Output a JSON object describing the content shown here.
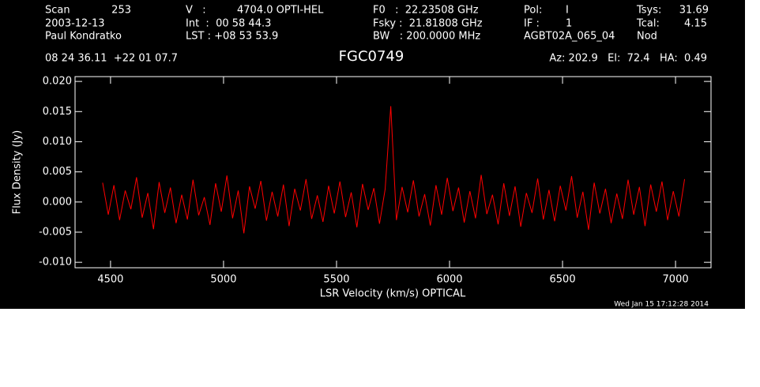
{
  "header": {
    "scan_label": "Scan",
    "scan": "253",
    "date": "2003-12-13",
    "observer": "Paul Kondratko",
    "v_label": "V   :",
    "v": "4704.0 OPTI-HEL",
    "int": "Int  :  00 58 44.3",
    "lst": "LST : +08 53 53.9",
    "f0": "F0   :  22.23508 GHz",
    "fsky": "Fsky :  21.81808 GHz",
    "bw": "BW   : 200.0000 MHz",
    "pol_label": "Pol:",
    "pol": "I",
    "if_label": "IF :",
    "if": "1",
    "project": "AGBT02A_065_04",
    "tsys_label": "Tsys:",
    "tsys": "31.69",
    "tcal_label": "Tcal:",
    "tcal": "4.15",
    "mode": "Nod",
    "coords": "08 24 36.11  +22 01 07.7",
    "azel": "Az: 202.9   El:  72.4   HA:  0.49"
  },
  "chart_data": {
    "type": "line",
    "title": "FGC0749",
    "x_label": "LSR Velocity (km/s) OPTICAL",
    "y_label": "Flux Density (Jy)",
    "x": [
      4465,
      4490,
      4515,
      4540,
      4565,
      4590,
      4615,
      4640,
      4665,
      4690,
      4715,
      4740,
      4765,
      4790,
      4815,
      4840,
      4865,
      4890,
      4915,
      4940,
      4965,
      4990,
      5015,
      5040,
      5065,
      5090,
      5115,
      5140,
      5165,
      5190,
      5215,
      5240,
      5265,
      5290,
      5315,
      5340,
      5365,
      5390,
      5415,
      5440,
      5465,
      5490,
      5515,
      5540,
      5565,
      5590,
      5615,
      5640,
      5665,
      5690,
      5715,
      5740,
      5765,
      5790,
      5815,
      5840,
      5865,
      5890,
      5915,
      5940,
      5965,
      5990,
      6015,
      6040,
      6065,
      6090,
      6115,
      6140,
      6165,
      6190,
      6215,
      6240,
      6265,
      6290,
      6315,
      6340,
      6365,
      6390,
      6415,
      6440,
      6465,
      6490,
      6515,
      6540,
      6565,
      6590,
      6615,
      6640,
      6665,
      6690,
      6715,
      6740,
      6765,
      6790,
      6815,
      6840,
      6865,
      6890,
      6915,
      6940,
      6965,
      6990,
      7015,
      7040
    ],
    "series": [
      {
        "color": "#ff0000",
        "values": [
          0.0032,
          -0.0021,
          0.0028,
          -0.003,
          0.0019,
          -0.0012,
          0.0041,
          -0.0026,
          0.0015,
          -0.0045,
          0.0033,
          -0.0018,
          0.0024,
          -0.0035,
          0.0012,
          -0.0029,
          0.0037,
          -0.0022,
          0.0008,
          -0.0038,
          0.0031,
          -0.0016,
          0.0044,
          -0.0027,
          0.0019,
          -0.0052,
          0.0026,
          -0.0011,
          0.0035,
          -0.0031,
          0.0017,
          -0.0024,
          0.0029,
          -0.004,
          0.0022,
          -0.0014,
          0.0038,
          -0.0028,
          0.0011,
          -0.0033,
          0.0027,
          -0.0019,
          0.0034,
          -0.0025,
          0.0016,
          -0.0042,
          0.003,
          -0.0013,
          0.0023,
          -0.0036,
          0.0021,
          0.0159,
          -0.003,
          0.0025,
          -0.0017,
          0.0036,
          -0.0024,
          0.0013,
          -0.0039,
          0.0028,
          -0.0021,
          0.004,
          -0.0015,
          0.0024,
          -0.0034,
          0.0018,
          -0.0027,
          0.0045,
          -0.002,
          0.0012,
          -0.0037,
          0.0031,
          -0.0023,
          0.0026,
          -0.0041,
          0.0015,
          -0.0018,
          0.0039,
          -0.0029,
          0.002,
          -0.0032,
          0.0027,
          -0.0014,
          0.0043,
          -0.0026,
          0.0017,
          -0.0046,
          0.0032,
          -0.0019,
          0.0022,
          -0.0035,
          0.0014,
          -0.0028,
          0.0037,
          -0.0021,
          0.0025,
          -0.004,
          0.0029,
          -0.0016,
          0.0034,
          -0.003,
          0.0018,
          -0.0024,
          0.0038
        ]
      }
    ],
    "xlim": [
      4343,
      7157
    ],
    "ylim": [
      -0.0109,
      0.0208
    ],
    "xticks": [
      4500,
      5000,
      5500,
      6000,
      6500,
      7000
    ],
    "yticks": [
      {
        "value": -0.01,
        "label": "-0.010"
      },
      {
        "value": -0.005,
        "label": "-0.005"
      },
      {
        "value": 0,
        "label": "0.000"
      },
      {
        "value": 0.005,
        "label": "0.005"
      },
      {
        "value": 0.01,
        "label": "0.010"
      },
      {
        "value": 0.015,
        "label": "0.015"
      },
      {
        "value": 0.02,
        "label": "0.020"
      }
    ]
  },
  "footer": {
    "timestamp": "Wed Jan 15 17:12:28 2014"
  }
}
